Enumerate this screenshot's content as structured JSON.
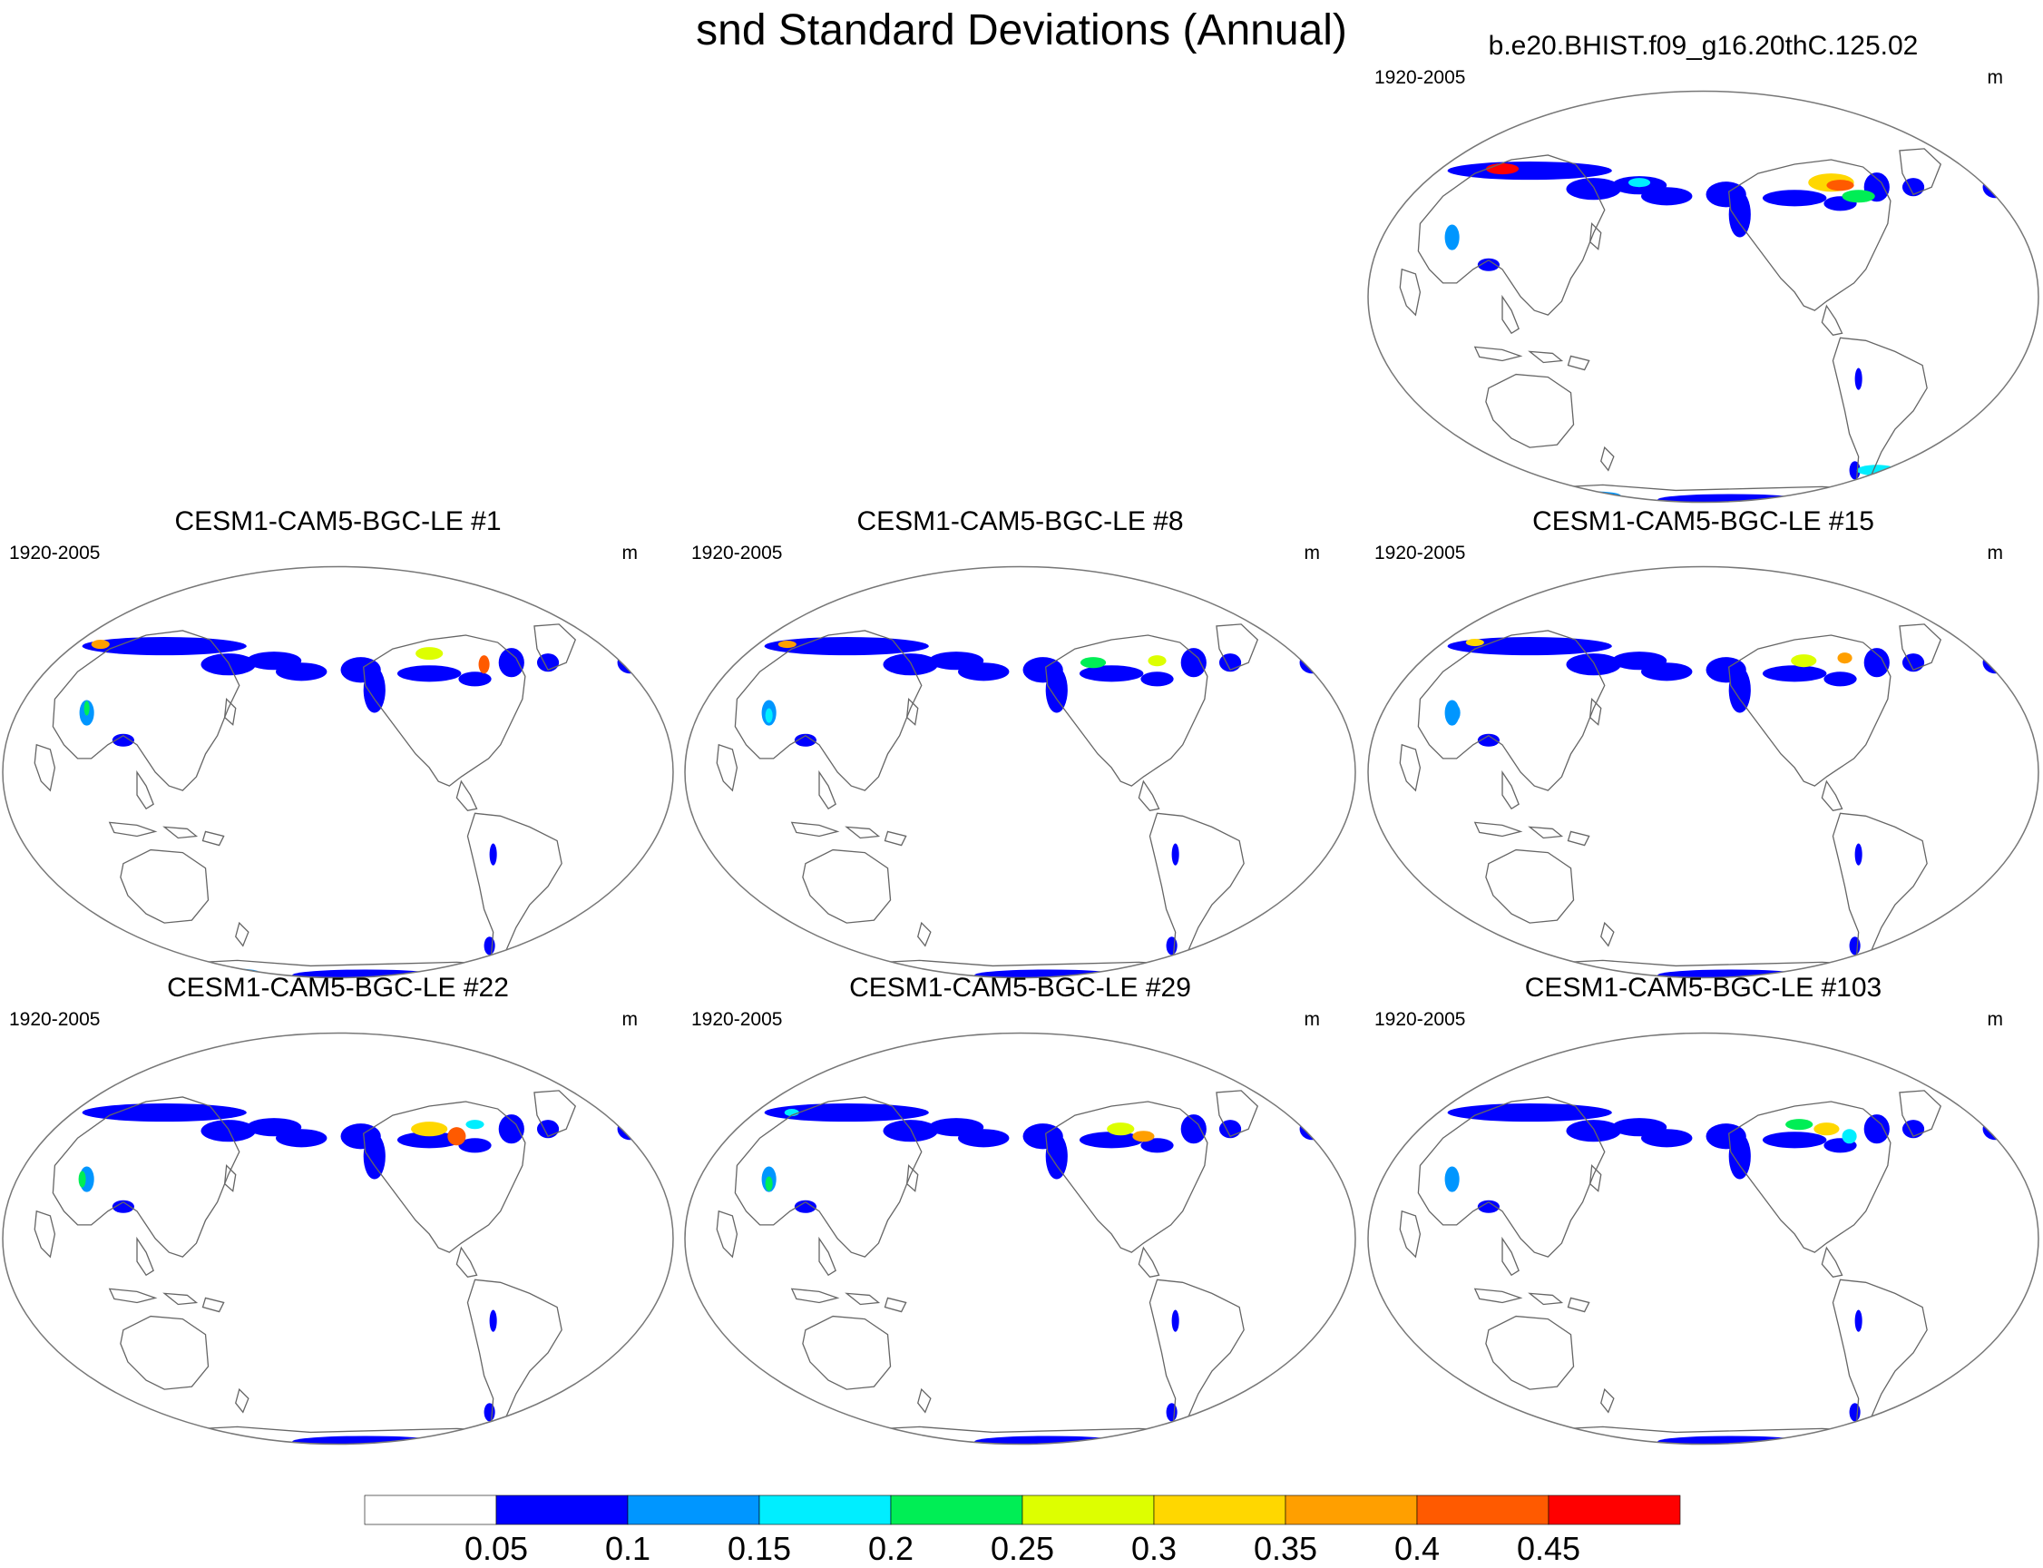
{
  "title": "snd Standard Deviations (Annual)",
  "panels": [
    {
      "title": "b.e20.BHIST.f09_g16.20thC.125.02",
      "period": "1920-2005",
      "units": "m"
    },
    {
      "title": "CESM1-CAM5-BGC-LE #1",
      "period": "1920-2005",
      "units": "m"
    },
    {
      "title": "CESM1-CAM5-BGC-LE #8",
      "period": "1920-2005",
      "units": "m"
    },
    {
      "title": "CESM1-CAM5-BGC-LE #15",
      "period": "1920-2005",
      "units": "m"
    },
    {
      "title": "CESM1-CAM5-BGC-LE #22",
      "period": "1920-2005",
      "units": "m"
    },
    {
      "title": "CESM1-CAM5-BGC-LE #29",
      "period": "1920-2005",
      "units": "m"
    },
    {
      "title": "CESM1-CAM5-BGC-LE #103",
      "period": "1920-2005",
      "units": "m"
    }
  ],
  "colorbar": {
    "labels": [
      "0.05",
      "0.1",
      "0.15",
      "0.2",
      "0.25",
      "0.3",
      "0.35",
      "0.4",
      "0.45"
    ],
    "colors": [
      "#ffffff",
      "#0000ff",
      "#0096ff",
      "#00eeff",
      "#00ee55",
      "#ddff00",
      "#ffd700",
      "#ff9f00",
      "#ff5a00",
      "#ff0000"
    ]
  }
}
